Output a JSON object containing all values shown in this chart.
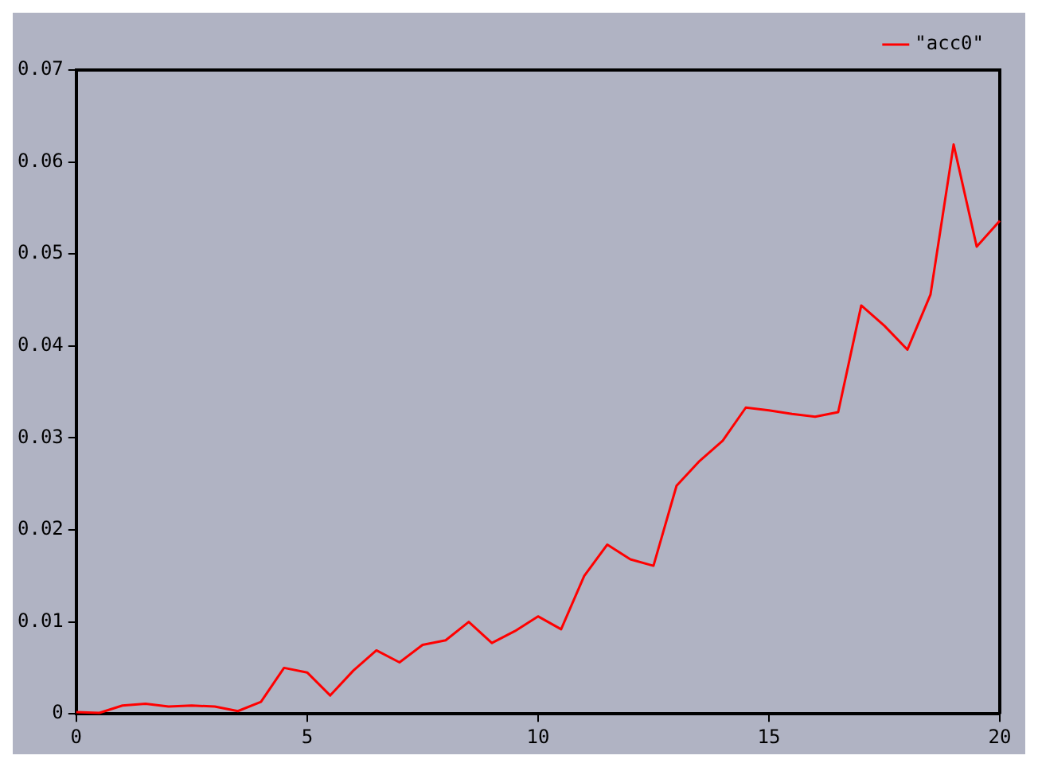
{
  "chart_data": {
    "type": "line",
    "x": [
      0,
      0.5,
      1,
      1.5,
      2,
      2.5,
      3,
      3.5,
      4,
      4.5,
      5,
      5.5,
      6,
      6.5,
      7,
      7.5,
      8,
      8.5,
      9,
      9.5,
      10,
      10.5,
      11,
      11.5,
      12,
      12.5,
      13,
      13.5,
      14,
      14.5,
      15,
      15.5,
      16,
      16.5,
      17,
      17.5,
      18,
      18.5,
      19,
      19.5,
      20
    ],
    "series": [
      {
        "name": "\"acc0\"",
        "color": "#ff0000",
        "values": [
          0.0002,
          0.0001,
          0.0009,
          0.0011,
          0.0008,
          0.0009,
          0.0008,
          0.0003,
          0.0013,
          0.005,
          0.0045,
          0.002,
          0.0047,
          0.0069,
          0.0056,
          0.0075,
          0.008,
          0.01,
          0.0077,
          0.009,
          0.0106,
          0.0092,
          0.015,
          0.0184,
          0.0168,
          0.0161,
          0.0248,
          0.0275,
          0.0297,
          0.0333,
          0.033,
          0.0326,
          0.0323,
          0.0328,
          0.0444,
          0.0422,
          0.0396,
          0.0456,
          0.0619,
          0.0508,
          0.0536
        ]
      }
    ],
    "xlim": [
      0,
      20
    ],
    "xticks": [
      0,
      5,
      10,
      15,
      20
    ],
    "ylim": [
      0,
      0.07
    ],
    "yticks": [
      0,
      0.01,
      0.02,
      0.03,
      0.04,
      0.05,
      0.06,
      0.07
    ],
    "grid": false,
    "legend": "top right",
    "marker": "none",
    "line_style": "solid"
  }
}
